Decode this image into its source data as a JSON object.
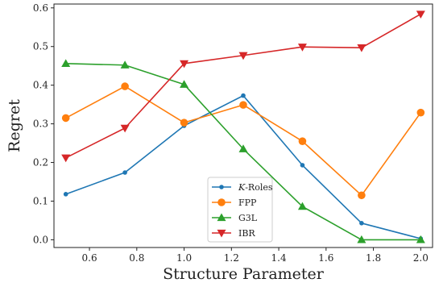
{
  "chart_data": {
    "type": "line",
    "xlabel": "Structure Parameter",
    "ylabel": "Regret",
    "x": [
      0.5,
      0.75,
      1.0,
      1.25,
      1.5,
      1.75,
      2.0
    ],
    "xlim": [
      0.45,
      2.05
    ],
    "ylim": [
      -0.02,
      0.61
    ],
    "xticks": [
      "0.6",
      "0.8",
      "1.0",
      "1.2",
      "1.4",
      "1.6",
      "1.8",
      "2.0"
    ],
    "yticks": [
      "0.0",
      "0.1",
      "0.2",
      "0.3",
      "0.4",
      "0.5",
      "0.6"
    ],
    "grid": false,
    "legend_position": "lower center",
    "series": [
      {
        "name": "K-Roles",
        "name_italic": "K",
        "name_rest": "-Roles",
        "color": "#1f77b4",
        "marker": "circle-small",
        "values": [
          0.118,
          0.174,
          0.295,
          0.373,
          0.193,
          0.043,
          0.003
        ]
      },
      {
        "name": "FPP",
        "color": "#ff7f0e",
        "marker": "circle",
        "values": [
          0.315,
          0.397,
          0.303,
          0.349,
          0.255,
          0.115,
          0.329
        ]
      },
      {
        "name": "G3L",
        "color": "#2ca02c",
        "marker": "triangle-up",
        "values": [
          0.456,
          0.452,
          0.402,
          0.235,
          0.086,
          0.0,
          0.0
        ]
      },
      {
        "name": "IBR",
        "color": "#d62728",
        "marker": "triangle-down",
        "values": [
          0.212,
          0.289,
          0.456,
          0.477,
          0.499,
          0.497,
          0.584
        ]
      }
    ]
  }
}
